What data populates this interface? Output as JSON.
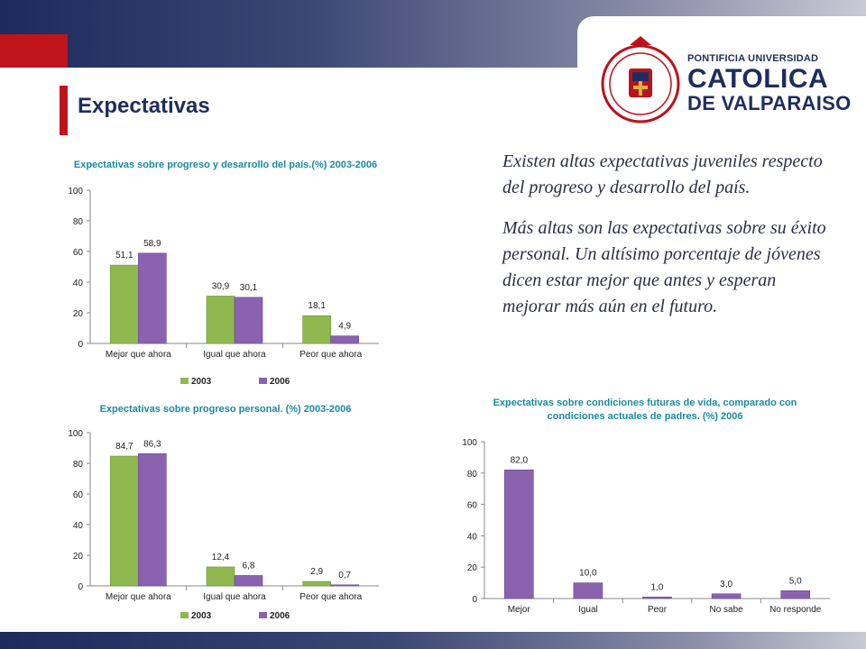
{
  "header": {
    "title": "Expectativas",
    "logo_line1": "PONTIFICIA UNIVERSIDAD",
    "logo_line2": "CATOLICA",
    "logo_line3": "DE VALPARAISO"
  },
  "text": {
    "para1": "Existen altas expectativas juveniles respecto del progreso y desarrollo del país.",
    "para2": "Más altas son las expectativas sobre su éxito personal. Un altísimo porcentaje de jóvenes dicen estar mejor que antes y esperan mejorar más aún en el futuro."
  },
  "colors": {
    "s2003": "#8fb84e",
    "s2006": "#8a62b0",
    "accent": "#c0141c",
    "title": "#1a8aa0"
  },
  "chart_data": [
    {
      "type": "bar",
      "title": "Expectativas sobre progreso y desarrollo del país.(%) 2003-2006",
      "categories": [
        "Mejor que ahora",
        "Igual que ahora",
        "Peor que ahora"
      ],
      "series": [
        {
          "name": "2003",
          "values": [
            51.1,
            30.9,
            18.1
          ],
          "labels": [
            "51,1",
            "30,9",
            "18,1"
          ]
        },
        {
          "name": "2006",
          "values": [
            58.9,
            30.1,
            4.9
          ],
          "labels": [
            "58,9",
            "30,1",
            "4,9"
          ]
        }
      ],
      "ylim": [
        0,
        100
      ],
      "yticks": [
        0,
        20,
        40,
        60,
        80,
        100
      ],
      "legend": "bottom"
    },
    {
      "type": "bar",
      "title": "Expectativas sobre progreso personal. (%) 2003-2006",
      "categories": [
        "Mejor que ahora",
        "Igual que ahora",
        "Peor que ahora"
      ],
      "series": [
        {
          "name": "2003",
          "values": [
            84.7,
            12.4,
            2.9
          ],
          "labels": [
            "84,7",
            "12,4",
            "2,9"
          ]
        },
        {
          "name": "2006",
          "values": [
            86.3,
            6.8,
            0.7
          ],
          "labels": [
            "86,3",
            "6,8",
            "0,7"
          ]
        }
      ],
      "ylim": [
        0,
        100
      ],
      "yticks": [
        0,
        20,
        40,
        60,
        80,
        100
      ],
      "legend": "bottom"
    },
    {
      "type": "bar",
      "title": "Expectativas sobre condiciones futuras de vida, comparado con condiciones actuales de padres. (%) 2006",
      "categories": [
        "Mejor",
        "Igual",
        "Peor",
        "No sabe",
        "No responde"
      ],
      "series": [
        {
          "values": [
            82.0,
            10.0,
            1.0,
            3.0,
            5.0
          ],
          "labels": [
            "82,0",
            "10,0",
            "1,0",
            "3,0",
            "5,0"
          ]
        }
      ],
      "ylim": [
        0,
        100
      ],
      "yticks": [
        0,
        20,
        40,
        60,
        80,
        100
      ],
      "legend": "none"
    }
  ]
}
